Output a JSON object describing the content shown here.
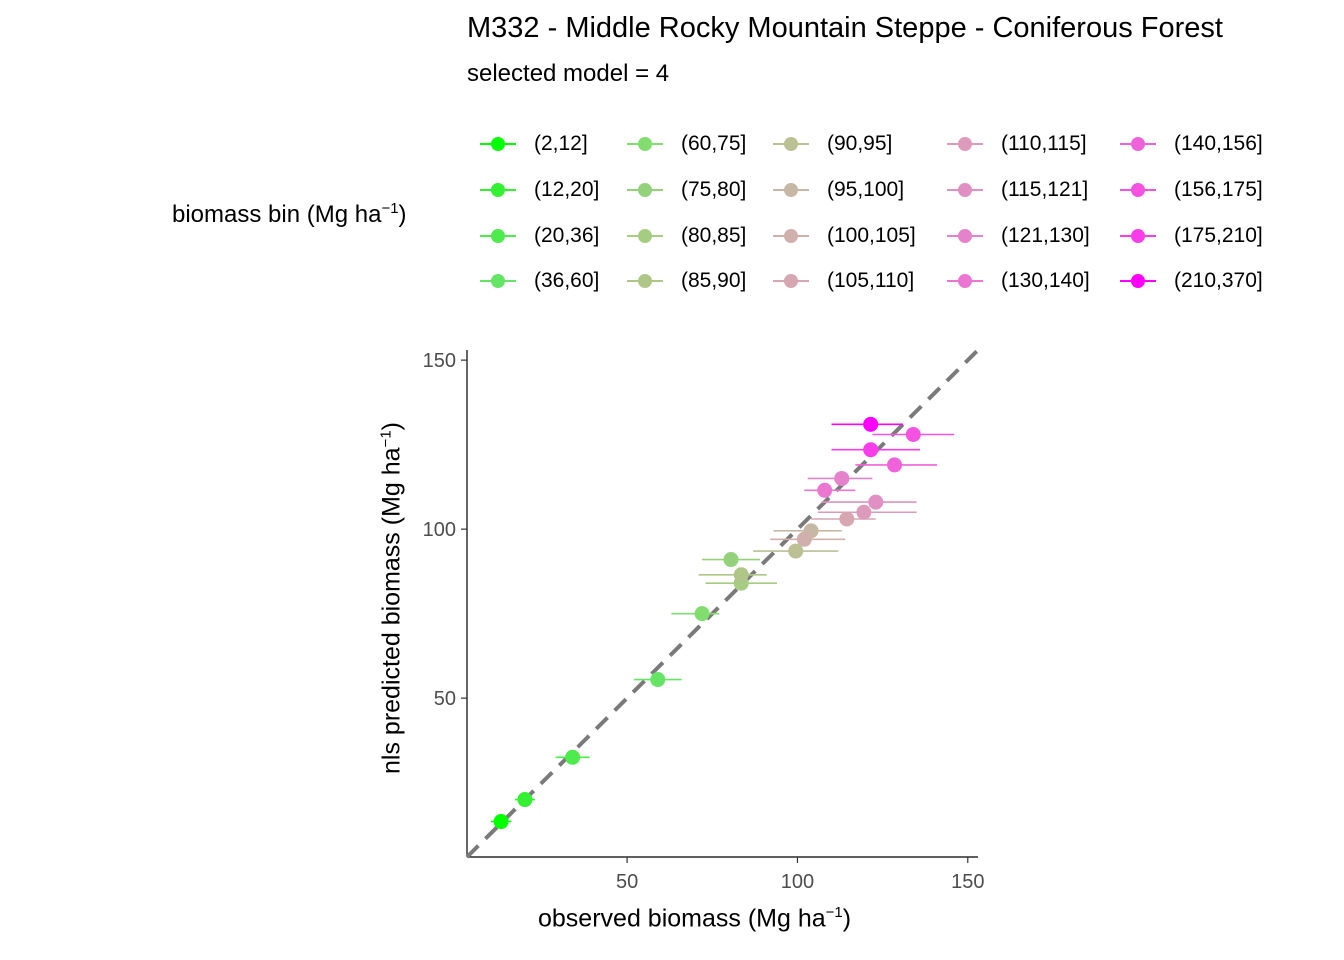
{
  "chart_data": {
    "type": "scatter",
    "title": "M332 - Middle Rocky Mountain Steppe - Coniferous Forest",
    "subtitle": "selected model = 4",
    "legend_title": "biomass bin (Mg ha",
    "legend_title_sup": "−1",
    "legend_title_close": ")",
    "xlabel": "observed biomass (Mg ha",
    "xlabel_sup": "−1",
    "xlabel_close": ")",
    "ylabel": "nls predicted biomass (Mg ha",
    "ylabel_sup": "−1",
    "ylabel_close": ")",
    "xlim": [
      3,
      153
    ],
    "ylim": [
      3,
      153
    ],
    "x_ticks": [
      50,
      100,
      150
    ],
    "y_ticks": [
      50,
      100,
      150
    ],
    "x_tick_labels": [
      "50",
      "100",
      "150"
    ],
    "y_tick_labels": [
      "50",
      "100",
      "150"
    ],
    "reference_line": "y = x, dashed",
    "grid": false,
    "legend_position": "top",
    "series": [
      {
        "name": "(2,12]",
        "color": "#00ff00",
        "x": 13,
        "y": 13.5,
        "xmin": 10,
        "xmax": 16
      },
      {
        "name": "(12,20]",
        "color": "#33f033",
        "x": 20,
        "y": 20,
        "xmin": 17,
        "xmax": 23
      },
      {
        "name": "(20,36]",
        "color": "#4deb4d",
        "x": 34,
        "y": 32.5,
        "xmin": 29,
        "xmax": 39
      },
      {
        "name": "(36,60]",
        "color": "#66e466",
        "x": 59,
        "y": 55.5,
        "xmin": 52,
        "xmax": 66
      },
      {
        "name": "(60,75]",
        "color": "#80dd6e",
        "x": 72,
        "y": 75,
        "xmin": 63,
        "xmax": 77
      },
      {
        "name": "(75,80]",
        "color": "#93d27a",
        "x": 80.5,
        "y": 91,
        "xmin": 72,
        "xmax": 89
      },
      {
        "name": "(80,85]",
        "color": "#a6cc82",
        "x": 83.5,
        "y": 84,
        "xmin": 73,
        "xmax": 94
      },
      {
        "name": "(85,90]",
        "color": "#b0c689",
        "x": 83.5,
        "y": 86.5,
        "xmin": 71,
        "xmax": 91
      },
      {
        "name": "(90,95]",
        "color": "#bcc195",
        "x": 99.5,
        "y": 93.5,
        "xmin": 87,
        "xmax": 112
      },
      {
        "name": "(95,100]",
        "color": "#c7b8a5",
        "x": 104,
        "y": 99.5,
        "xmin": 93,
        "xmax": 113
      },
      {
        "name": "(100,105]",
        "color": "#d0b0ac",
        "x": 102,
        "y": 97,
        "xmin": 92,
        "xmax": 114
      },
      {
        "name": "(105,110]",
        "color": "#d6a6b3",
        "x": 114.5,
        "y": 103,
        "xmin": 104,
        "xmax": 123
      },
      {
        "name": "(110,115]",
        "color": "#dc9bbb",
        "x": 119.5,
        "y": 105,
        "xmin": 106,
        "xmax": 135
      },
      {
        "name": "(115,121]",
        "color": "#e190c4",
        "x": 123,
        "y": 108,
        "xmin": 107,
        "xmax": 135
      },
      {
        "name": "(121,130]",
        "color": "#e682cc",
        "x": 113,
        "y": 115,
        "xmin": 103,
        "xmax": 122
      },
      {
        "name": "(130,140]",
        "color": "#eb77d2",
        "x": 108,
        "y": 111.5,
        "xmin": 102,
        "xmax": 117
      },
      {
        "name": "(140,156]",
        "color": "#f062da",
        "x": 128.5,
        "y": 119,
        "xmin": 117,
        "xmax": 141
      },
      {
        "name": "(156,175]",
        "color": "#f552e2",
        "x": 134,
        "y": 128,
        "xmin": 122,
        "xmax": 146
      },
      {
        "name": "(175,210]",
        "color": "#fa3ceb",
        "x": 121.5,
        "y": 123.5,
        "xmin": 110,
        "xmax": 136
      },
      {
        "name": "(210,370]",
        "color": "#ff00ff",
        "x": 121.5,
        "y": 131,
        "xmin": 110,
        "xmax": 131
      }
    ]
  }
}
